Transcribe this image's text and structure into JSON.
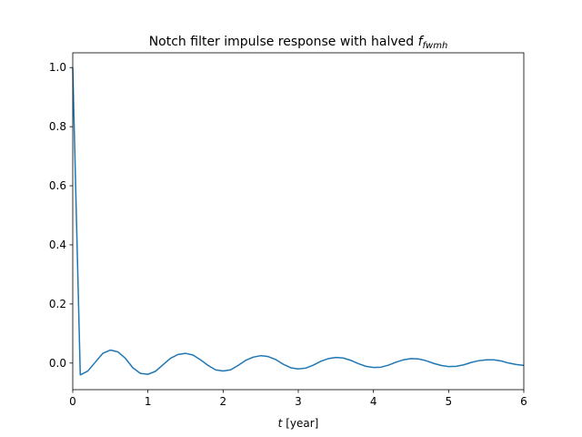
{
  "chart_data": {
    "type": "line",
    "title": "Notch filter impulse response with halved",
    "title_math": "f",
    "title_math_sub": "fwmh",
    "xlabel_var": "t",
    "xlabel_unit": "[year]",
    "xlim": [
      0,
      6
    ],
    "ylim": [
      -0.09,
      1.05
    ],
    "x_ticks": [
      {
        "value": 0,
        "label": "0"
      },
      {
        "value": 1,
        "label": "1"
      },
      {
        "value": 2,
        "label": "2"
      },
      {
        "value": 3,
        "label": "3"
      },
      {
        "value": 4,
        "label": "4"
      },
      {
        "value": 5,
        "label": "5"
      },
      {
        "value": 6,
        "label": "6"
      }
    ],
    "y_ticks": [
      {
        "value": 0.0,
        "label": "0.0"
      },
      {
        "value": 0.2,
        "label": "0.2"
      },
      {
        "value": 0.4,
        "label": "0.4"
      },
      {
        "value": 0.6,
        "label": "0.6"
      },
      {
        "value": 0.8,
        "label": "0.8"
      },
      {
        "value": 1.0,
        "label": "1.0"
      }
    ],
    "grid": false,
    "series": [
      {
        "color": "#1f77b4",
        "x": [
          0,
          0.1,
          0.2,
          0.3,
          0.4,
          0.5,
          0.6,
          0.7,
          0.8,
          0.9,
          1.0,
          1.1,
          1.2,
          1.3,
          1.4,
          1.5,
          1.6,
          1.7,
          1.8,
          1.9,
          2.0,
          2.1,
          2.2,
          2.3,
          2.4,
          2.5,
          2.6,
          2.7,
          2.8,
          2.9,
          3.0,
          3.1,
          3.2,
          3.3,
          3.4,
          3.5,
          3.6,
          3.7,
          3.8,
          3.9,
          4.0,
          4.1,
          4.2,
          4.3,
          4.4,
          4.5,
          4.6,
          4.7,
          4.8,
          4.9,
          5.0,
          5.1,
          5.2,
          5.3,
          5.4,
          5.5,
          5.6,
          5.7,
          5.8,
          5.9,
          6.0
        ],
        "y": [
          1.0,
          -0.04,
          -0.027,
          0.003,
          0.033,
          0.044,
          0.038,
          0.016,
          -0.016,
          -0.035,
          -0.038,
          -0.028,
          -0.006,
          0.016,
          0.029,
          0.033,
          0.027,
          0.011,
          -0.008,
          -0.023,
          -0.027,
          -0.023,
          -0.008,
          0.009,
          0.02,
          0.025,
          0.022,
          0.012,
          -0.004,
          -0.016,
          -0.02,
          -0.017,
          -0.007,
          0.006,
          0.015,
          0.019,
          0.017,
          0.009,
          -0.002,
          -0.011,
          -0.015,
          -0.014,
          -0.007,
          0.003,
          0.011,
          0.015,
          0.014,
          0.008,
          -0.001,
          -0.008,
          -0.012,
          -0.011,
          -0.006,
          0.002,
          0.008,
          0.011,
          0.011,
          0.007,
          0.0,
          -0.005,
          -0.008
        ]
      }
    ]
  }
}
